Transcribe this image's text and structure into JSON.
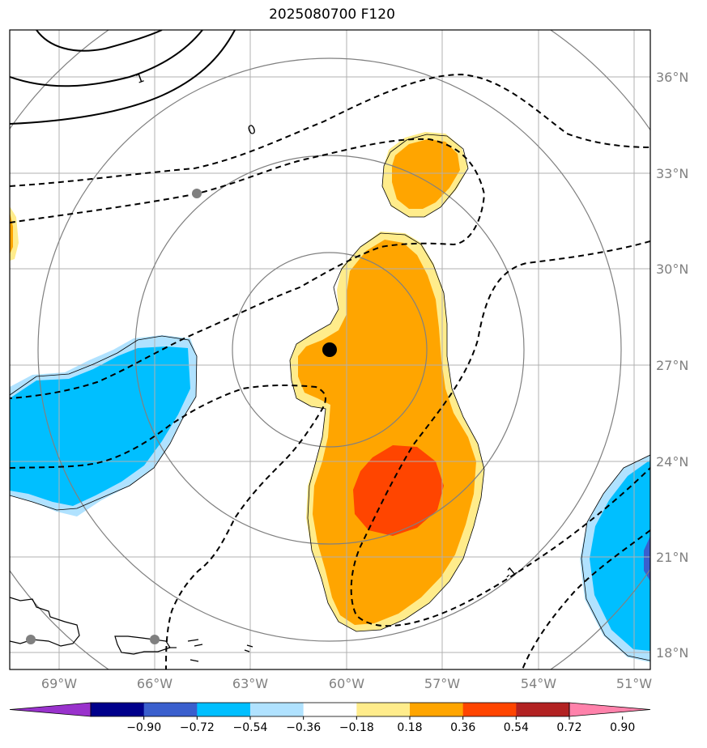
{
  "title": "2025080700 F120",
  "axes": {
    "lon_labels": [
      "69°W",
      "66°W",
      "63°W",
      "60°W",
      "57°W",
      "54°W",
      "51°W"
    ],
    "lat_labels": [
      "18°N",
      "21°N",
      "24°N",
      "27°N",
      "30°N",
      "33°N",
      "36°N"
    ]
  },
  "contour_labels": [
    "1",
    "0",
    "-1"
  ],
  "colorbar": {
    "ticks": [
      "−0.90",
      "−0.72",
      "−0.54",
      "−0.36",
      "−0.18",
      "0.18",
      "0.36",
      "0.54",
      "0.72",
      "0.90"
    ],
    "colors": [
      "#9932cc",
      "#00008b",
      "#3a5fcd",
      "#00bfff",
      "#b0e2ff",
      "#ffffff",
      "#ffec8b",
      "#ffa500",
      "#ff4500",
      "#b22222",
      "#ff82ab"
    ]
  },
  "colors": {
    "positive_fill": "#ffa500",
    "strong_positive_fill": "#ff4500",
    "weak_positive_fill": "#ffec8b",
    "negative_fill": "#00bfff",
    "weak_negative_fill": "#b0e2ff",
    "grid": "#b0b0b0",
    "range_rings": "#808080",
    "contours": "#000000"
  }
}
